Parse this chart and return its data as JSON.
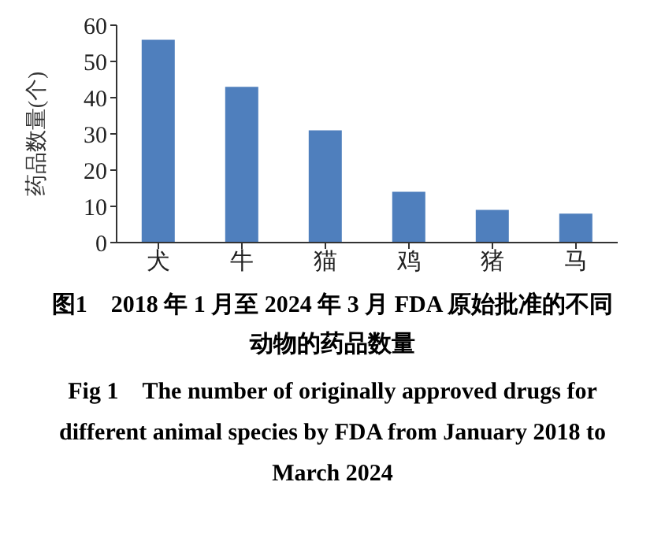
{
  "chart_data": {
    "type": "bar",
    "title": "图1　2018 年 1 月至 2024 年 3 月 FDA 原始批准的不同动物的药品数量",
    "subtitle": "Fig 1　The number of originally approved drugs for different animal species by FDA from January 2018 to March 2024",
    "ylabel": "药品数量(个)",
    "categories": [
      "犬",
      "牛",
      "猫",
      "鸡",
      "猪",
      "马"
    ],
    "values": [
      56,
      43,
      31,
      14,
      9,
      8
    ],
    "color": "#4f7fbd",
    "ylim": [
      0,
      60
    ],
    "yticks": [
      0,
      10,
      20,
      30,
      40,
      50,
      60
    ],
    "grid": false,
    "legend": false
  }
}
